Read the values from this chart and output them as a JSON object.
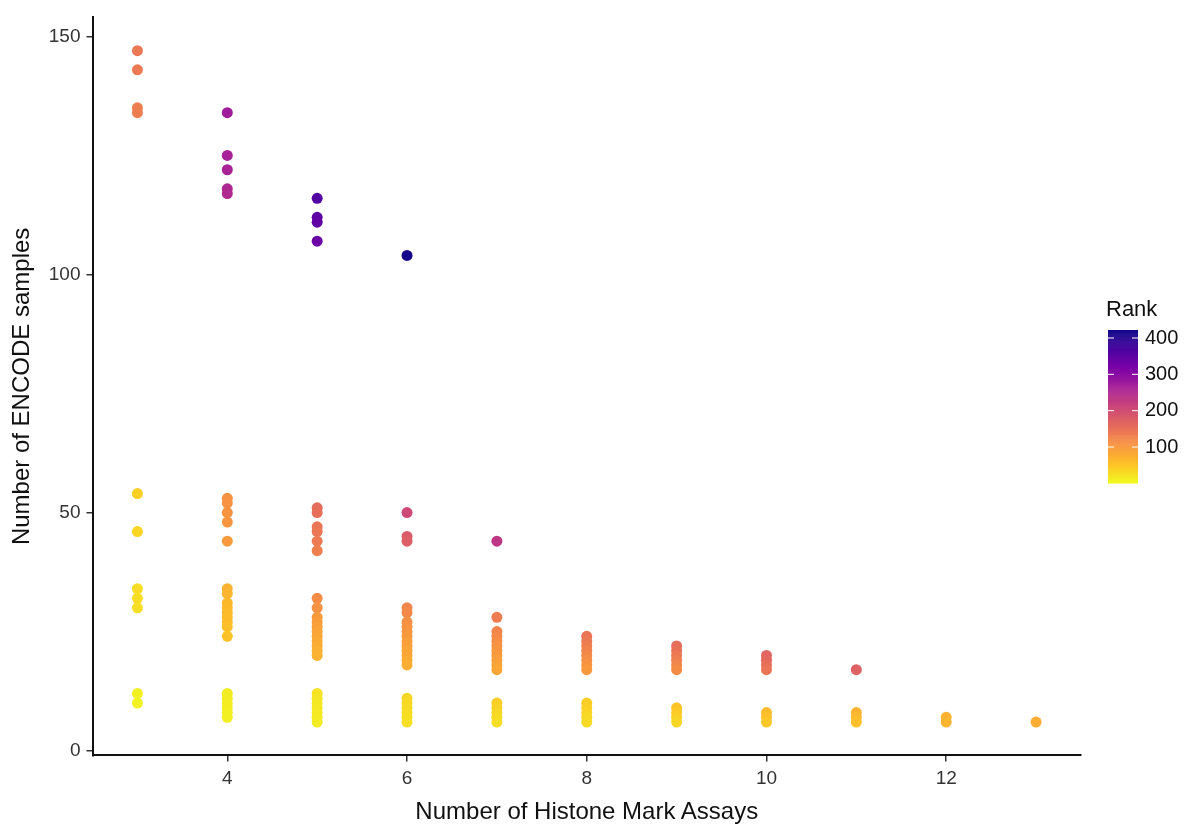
{
  "chart_data": {
    "type": "scatter",
    "xlabel": "Number of Histone Mark Assays",
    "ylabel": "Number of ENCODE samples",
    "clabel": "Rank",
    "xlim": [
      2.5,
      13.5
    ],
    "xticks": [
      4,
      6,
      8,
      10,
      12
    ],
    "ylim": [
      -1,
      154
    ],
    "yticks": [
      0,
      50,
      100,
      150
    ],
    "clim": [
      1,
      422
    ],
    "cticks": [
      100,
      200,
      300,
      400
    ],
    "grid": false,
    "legend": false,
    "marker": "circle",
    "series": [
      {
        "x": [
          3,
          3,
          3,
          3,
          3,
          3,
          3,
          3,
          3,
          3,
          3,
          4,
          4,
          4,
          4,
          4,
          4,
          4,
          4,
          4,
          4,
          4,
          4,
          4,
          4,
          4,
          4,
          4,
          4,
          4,
          4,
          4,
          4,
          4,
          4,
          4,
          5,
          5,
          5,
          5,
          5,
          5,
          5,
          5,
          5,
          5,
          5,
          5,
          5,
          5,
          5,
          5,
          5,
          5,
          5,
          5,
          5,
          5,
          5,
          5,
          5,
          5,
          5,
          5,
          6,
          6,
          6,
          6,
          6,
          6,
          6,
          6,
          6,
          6,
          6,
          6,
          6,
          6,
          6,
          6,
          6,
          6,
          6,
          6,
          6,
          6,
          7,
          7,
          7,
          7,
          7,
          7,
          7,
          7,
          7,
          7,
          7,
          7,
          7,
          7,
          7,
          7,
          8,
          8,
          8,
          8,
          8,
          8,
          8,
          8,
          8,
          8,
          8,
          8,
          8,
          9,
          9,
          9,
          9,
          9,
          9,
          9,
          9,
          9,
          9,
          10,
          10,
          10,
          10,
          10,
          10,
          10,
          11,
          11,
          11,
          11,
          12,
          12,
          13
        ],
        "values": [
          147,
          143,
          135,
          134,
          54,
          46,
          34,
          32,
          30,
          12,
          10,
          134,
          125,
          122,
          118,
          117,
          53,
          52,
          50,
          48,
          44,
          34,
          33,
          31,
          30,
          29,
          28,
          27,
          26,
          24,
          12,
          11,
          10,
          9,
          8,
          7,
          116,
          112,
          111,
          107,
          51,
          50,
          47,
          46,
          44,
          42,
          32,
          30,
          28,
          27,
          26,
          25,
          24,
          23,
          22,
          21,
          20,
          12,
          11,
          10,
          9,
          8,
          7,
          6,
          104,
          50,
          45,
          44,
          30,
          29,
          27,
          26,
          25,
          24,
          23,
          22,
          21,
          20,
          19,
          18,
          11,
          10,
          9,
          8,
          7,
          6,
          44,
          28,
          25,
          24,
          23,
          22,
          21,
          20,
          19,
          18,
          17,
          10,
          9,
          8,
          7,
          6,
          24,
          23,
          22,
          21,
          20,
          19,
          18,
          17,
          10,
          9,
          8,
          7,
          6,
          22,
          21,
          20,
          19,
          18,
          17,
          9,
          8,
          7,
          6,
          20,
          19,
          18,
          17,
          8,
          7,
          6,
          17,
          8,
          7,
          6,
          7,
          6,
          6
        ],
        "cvalues": [
          140,
          138,
          135,
          134,
          40,
          35,
          28,
          27,
          26,
          10,
          8,
          275,
          265,
          262,
          255,
          252,
          110,
          108,
          106,
          104,
          100,
          70,
          68,
          65,
          63,
          62,
          60,
          58,
          56,
          52,
          14,
          13,
          12,
          11,
          10,
          9,
          360,
          350,
          345,
          335,
          155,
          152,
          145,
          142,
          138,
          132,
          115,
          110,
          100,
          96,
          92,
          88,
          85,
          82,
          78,
          75,
          72,
          22,
          20,
          18,
          17,
          16,
          15,
          14,
          415,
          205,
          180,
          175,
          125,
          120,
          112,
          108,
          104,
          100,
          96,
          92,
          88,
          84,
          80,
          76,
          34,
          32,
          30,
          28,
          26,
          24,
          232,
          135,
          125,
          120,
          115,
          110,
          105,
          100,
          95,
          90,
          85,
          42,
          38,
          34,
          30,
          26,
          145,
          140,
          133,
          127,
          120,
          113,
          106,
          100,
          44,
          40,
          36,
          33,
          30,
          155,
          148,
          140,
          132,
          124,
          116,
          52,
          46,
          40,
          34,
          165,
          160,
          152,
          145,
          62,
          55,
          48,
          172,
          70,
          64,
          56,
          72,
          68,
          76
        ]
      }
    ]
  }
}
